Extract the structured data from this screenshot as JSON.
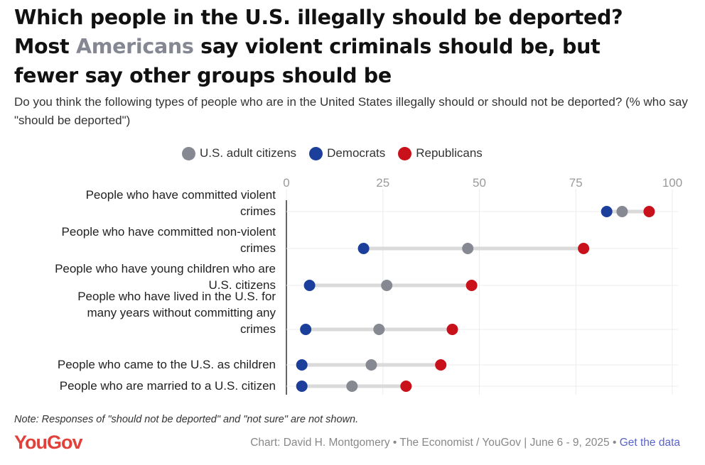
{
  "title": {
    "line1": "Which people in the U.S. illegally should be deported?",
    "line2_pre": "Most ",
    "line2_highlight": "Americans",
    "line2_post": " say violent criminals should be, but",
    "line3": "fewer say other groups should be"
  },
  "subtitle": "Do you think the following types of people who are in the United States illegally should or should not be deported? (% who say \"should be deported\")",
  "legend": [
    {
      "label": "U.S. adult citizens",
      "color": "#868992"
    },
    {
      "label": "Democrats",
      "color": "#1d3f9c"
    },
    {
      "label": "Republicans",
      "color": "#c8111b"
    }
  ],
  "chart_data": {
    "type": "dot-plot",
    "xlim": [
      0,
      100
    ],
    "ticks": [
      "0",
      "25",
      "50",
      "75",
      "100"
    ],
    "tick_values": [
      0,
      25,
      50,
      75,
      100
    ],
    "series_order": [
      "U.S. adult citizens",
      "Democrats",
      "Republicans"
    ],
    "categories": [
      {
        "label": [
          "People who have committed violent",
          "crimes"
        ],
        "values": {
          "U.S. adult citizens": 87,
          "Democrats": 83,
          "Republicans": 94
        }
      },
      {
        "label": [
          "People who have committed non-violent",
          "crimes"
        ],
        "values": {
          "U.S. adult citizens": 47,
          "Democrats": 20,
          "Republicans": 77
        }
      },
      {
        "label": [
          "People who have young children who are",
          "U.S. citizens"
        ],
        "values": {
          "U.S. adult citizens": 26,
          "Democrats": 6,
          "Republicans": 48
        }
      },
      {
        "label": [
          "People who have lived in the U.S. for",
          "many years without committing any",
          "crimes"
        ],
        "values": {
          "U.S. adult citizens": 24,
          "Democrats": 5,
          "Republicans": 43
        }
      },
      {
        "label": [
          "People who came to the U.S. as children"
        ],
        "values": {
          "U.S. adult citizens": 22,
          "Democrats": 4,
          "Republicans": 40
        }
      },
      {
        "label": [
          "People who are married to a U.S. citizen"
        ],
        "values": {
          "U.S. adult citizens": 17,
          "Democrats": 4,
          "Republicans": 31
        }
      }
    ]
  },
  "note": "Note: Responses of \"should not be deported\" and \"not sure\" are not shown.",
  "logo": "YouGov",
  "credit": "Chart: David H. Montgomery • The Economist / YouGov | June 6 - 9, 2025 • ",
  "credit_link": "Get the data"
}
